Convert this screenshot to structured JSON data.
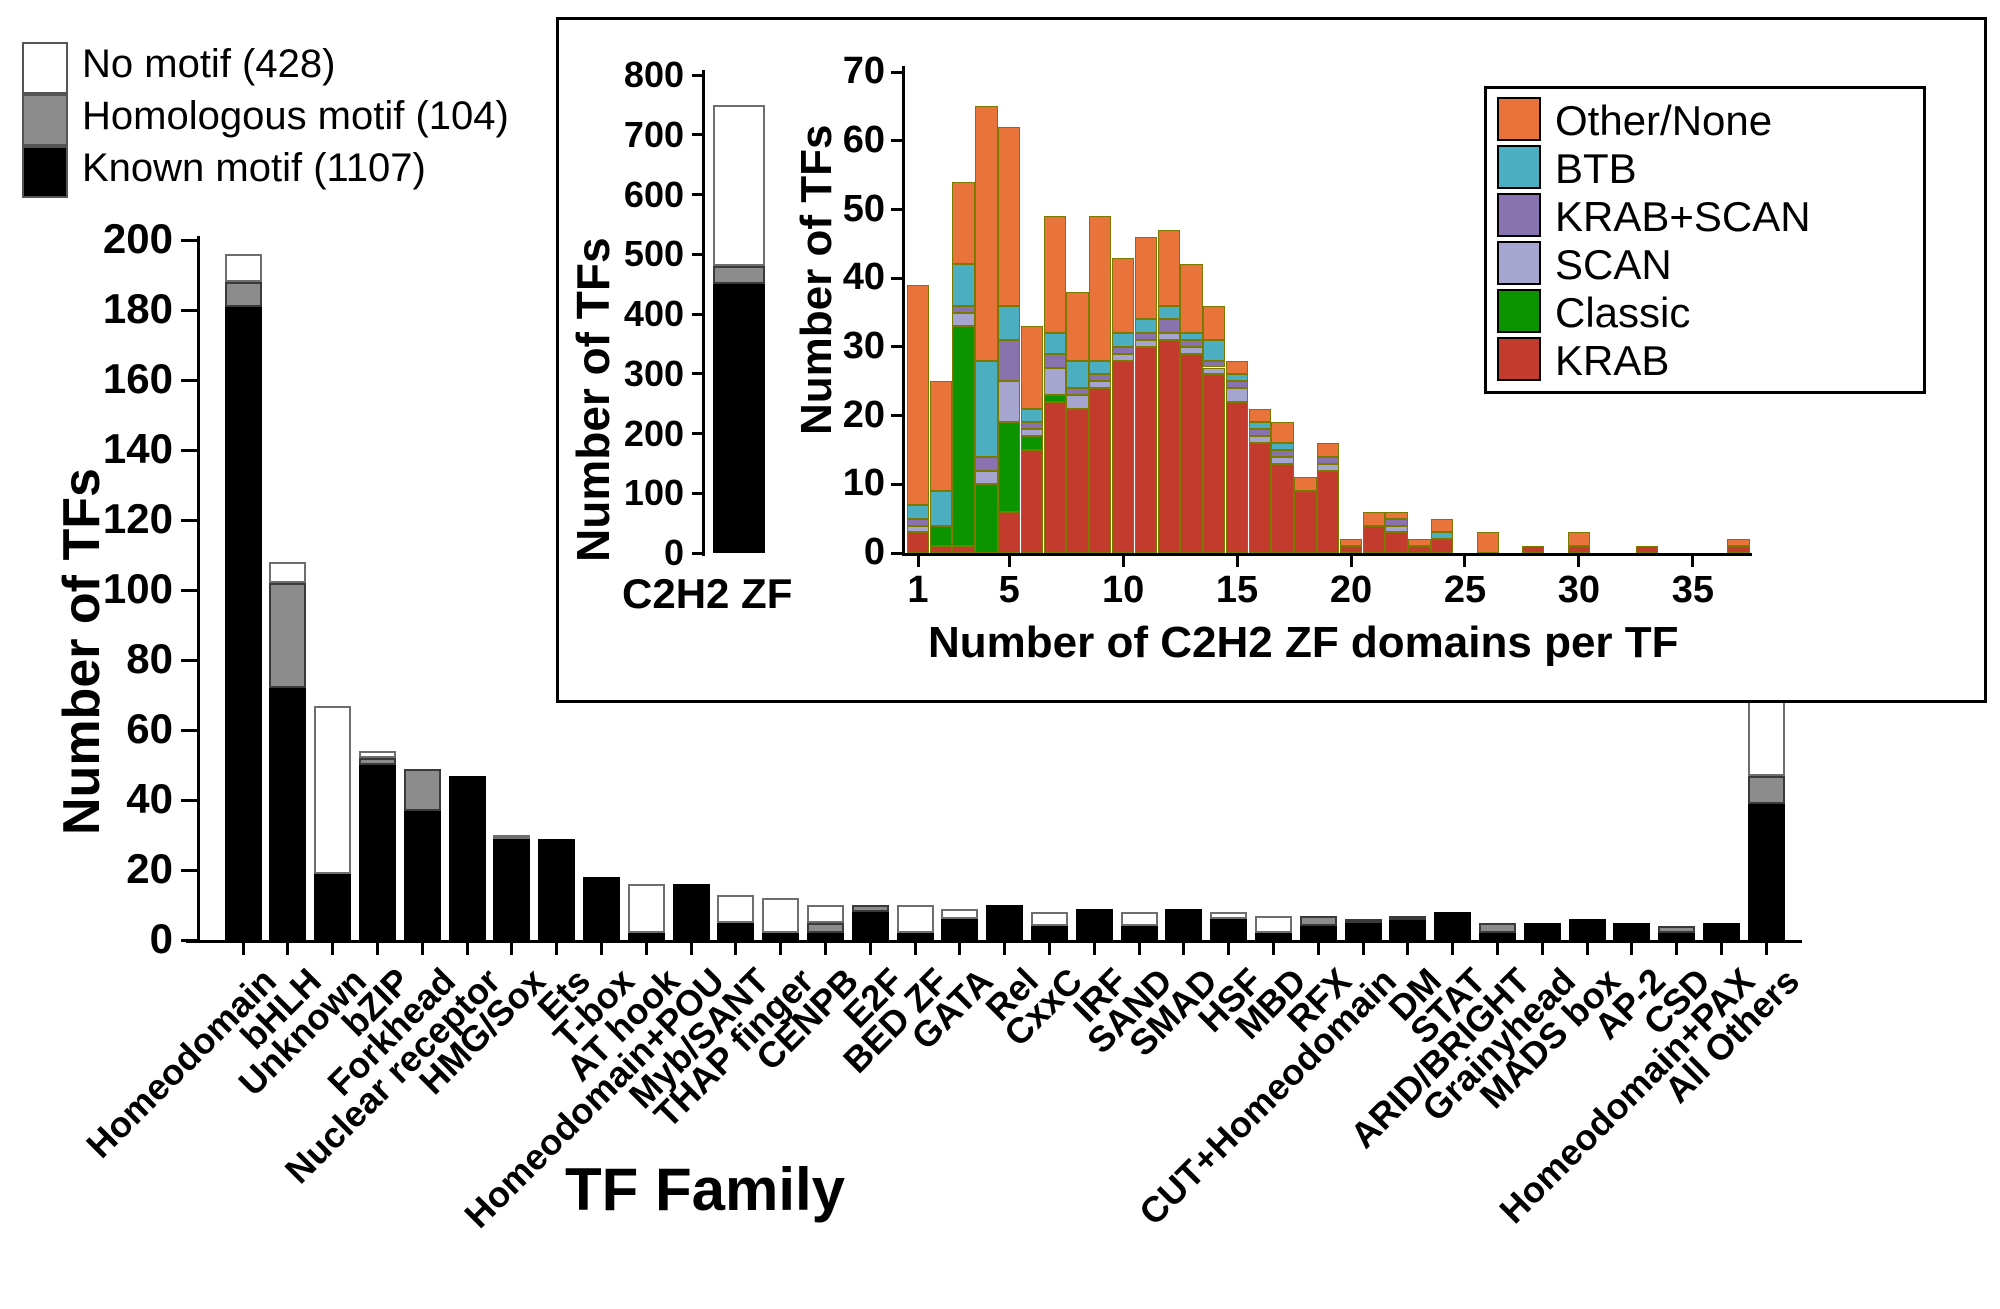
{
  "figure": {
    "main_legend": [
      {
        "key": "none",
        "label": "No motif (428)",
        "color": "#FFFFFF"
      },
      {
        "key": "homologous",
        "label": "Homologous motif (104)",
        "color": "#8C8C8C"
      },
      {
        "key": "known",
        "label": "Known motif (1107)",
        "color": "#000000"
      }
    ]
  },
  "chart_data": [
    {
      "id": "tf-family-motif-status",
      "type": "bar",
      "stacked": true,
      "xlabel": "TF Family",
      "ylabel": "Number of TFs",
      "ylim": [
        0,
        200
      ],
      "yticks": [
        0,
        20,
        40,
        60,
        80,
        100,
        120,
        140,
        160,
        180,
        200
      ],
      "grid": false,
      "series_order": [
        "known",
        "homologous",
        "none"
      ],
      "series_colors": {
        "known": "#000000",
        "homologous": "#8C8C8C",
        "none": "#FFFFFF"
      },
      "categories": [
        "Homeodomain",
        "bHLH",
        "Unknown",
        "bZIP",
        "Forkhead",
        "Nuclear receptor",
        "HMG/Sox",
        "Ets",
        "T-box",
        "AT hook",
        "Homeodomain+POU",
        "Myb/SANT",
        "THAP finger",
        "CENPB",
        "E2F",
        "BED ZF",
        "GATA",
        "Rel",
        "CxxC",
        "IRF",
        "SAND",
        "SMAD",
        "HSF",
        "MBD",
        "RFX",
        "CUT+Homeodomain",
        "DM",
        "STAT",
        "ARID/BRIGHT",
        "Grainyhead",
        "MADS box",
        "AP-2",
        "CSD",
        "Homeodomain+PAX",
        "All Others"
      ],
      "values": {
        "known": [
          181,
          72,
          19,
          50,
          37,
          47,
          29,
          29,
          18,
          2,
          16,
          5,
          2,
          2,
          8,
          2,
          6,
          10,
          4,
          9,
          4,
          9,
          6,
          2,
          4,
          5,
          6,
          8,
          2,
          5,
          6,
          5,
          2,
          5,
          39
        ],
        "homologous": [
          7,
          30,
          0,
          2,
          12,
          0,
          0,
          0,
          0,
          0,
          0,
          0,
          0,
          3,
          2,
          0,
          0,
          0,
          0,
          0,
          0,
          0,
          0,
          0,
          3,
          1,
          1,
          0,
          3,
          0,
          0,
          0,
          2,
          0,
          8
        ],
        "none": [
          8,
          6,
          48,
          2,
          0,
          0,
          1,
          0,
          0,
          14,
          0,
          8,
          10,
          5,
          0,
          8,
          3,
          0,
          4,
          0,
          4,
          0,
          2,
          5,
          0,
          0,
          0,
          0,
          0,
          0,
          0,
          0,
          0,
          0,
          25
        ]
      }
    },
    {
      "id": "c2h2-zf-total",
      "type": "bar",
      "stacked": true,
      "ylabel": "Number of TFs",
      "ylim": [
        0,
        800
      ],
      "yticks": [
        0,
        100,
        200,
        300,
        400,
        500,
        600,
        700,
        800
      ],
      "categories": [
        "C2H2 ZF"
      ],
      "series_order": [
        "known",
        "homologous",
        "none"
      ],
      "series_colors": {
        "known": "#000000",
        "homologous": "#8C8C8C",
        "none": "#FFFFFF"
      },
      "values": {
        "known": [
          450
        ],
        "homologous": [
          30
        ],
        "none": [
          270
        ]
      }
    },
    {
      "id": "c2h2-domains-per-tf",
      "type": "bar",
      "stacked": true,
      "xlabel": "Number of C2H2 ZF domains per TF",
      "ylabel": "Number of TFs",
      "ylim": [
        0,
        70
      ],
      "yticks": [
        0,
        10,
        20,
        30,
        40,
        50,
        60,
        70
      ],
      "xticks": [
        1,
        5,
        10,
        15,
        20,
        25,
        30,
        35
      ],
      "x": [
        1,
        2,
        3,
        4,
        5,
        6,
        7,
        8,
        9,
        10,
        11,
        12,
        13,
        14,
        15,
        16,
        17,
        18,
        19,
        20,
        21,
        22,
        23,
        24,
        25,
        26,
        27,
        28,
        29,
        30,
        31,
        32,
        33,
        34,
        35,
        36,
        37
      ],
      "legend_order_top_to_bottom": [
        "Other/None",
        "BTB",
        "KRAB+SCAN",
        "SCAN",
        "Classic",
        "KRAB"
      ],
      "legend_position": "upper right",
      "series": [
        {
          "name": "KRAB",
          "color": "#C23B2C",
          "values": [
            3,
            1,
            1,
            0,
            6,
            15,
            22,
            21,
            24,
            28,
            30,
            31,
            29,
            26,
            22,
            16,
            13,
            9,
            12,
            1,
            4,
            3,
            1,
            2,
            0,
            0,
            0,
            1,
            0,
            1,
            0,
            0,
            1,
            0,
            0,
            0,
            1
          ]
        },
        {
          "name": "Classic",
          "color": "#0B9400",
          "values": [
            0,
            3,
            32,
            10,
            13,
            2,
            1,
            0,
            0,
            0,
            0,
            0,
            0,
            0,
            0,
            0,
            0,
            0,
            0,
            0,
            0,
            0,
            0,
            0,
            0,
            0,
            0,
            0,
            0,
            0,
            0,
            0,
            0,
            0,
            0,
            0,
            0
          ]
        },
        {
          "name": "SCAN",
          "color": "#A5A5D0",
          "values": [
            1,
            0,
            2,
            2,
            6,
            1,
            4,
            2,
            1,
            1,
            1,
            1,
            1,
            1,
            2,
            1,
            1,
            0,
            1,
            0,
            0,
            1,
            0,
            0,
            0,
            0,
            0,
            0,
            0,
            0,
            0,
            0,
            0,
            0,
            0,
            0,
            0
          ]
        },
        {
          "name": "KRAB+SCAN",
          "color": "#8873AE",
          "values": [
            1,
            0,
            1,
            2,
            6,
            1,
            2,
            1,
            1,
            1,
            1,
            2,
            1,
            1,
            1,
            1,
            1,
            0,
            1,
            0,
            0,
            1,
            0,
            0,
            0,
            0,
            0,
            0,
            0,
            0,
            0,
            0,
            0,
            0,
            0,
            0,
            0
          ]
        },
        {
          "name": "BTB",
          "color": "#4BAEC1",
          "values": [
            2,
            5,
            6,
            14,
            5,
            2,
            3,
            4,
            2,
            2,
            2,
            2,
            1,
            3,
            1,
            1,
            1,
            0,
            0,
            0,
            0,
            0,
            0,
            1,
            0,
            0,
            0,
            0,
            0,
            0,
            0,
            0,
            0,
            0,
            0,
            0,
            0
          ]
        },
        {
          "name": "Other/None",
          "color": "#E8743B",
          "values": [
            32,
            16,
            12,
            37,
            26,
            12,
            17,
            10,
            21,
            11,
            12,
            11,
            10,
            5,
            2,
            2,
            3,
            2,
            2,
            1,
            2,
            1,
            1,
            2,
            0,
            3,
            0,
            0,
            0,
            2,
            0,
            0,
            0,
            0,
            0,
            0,
            1
          ]
        }
      ],
      "bar_edge_color": "#7a7a00"
    }
  ]
}
